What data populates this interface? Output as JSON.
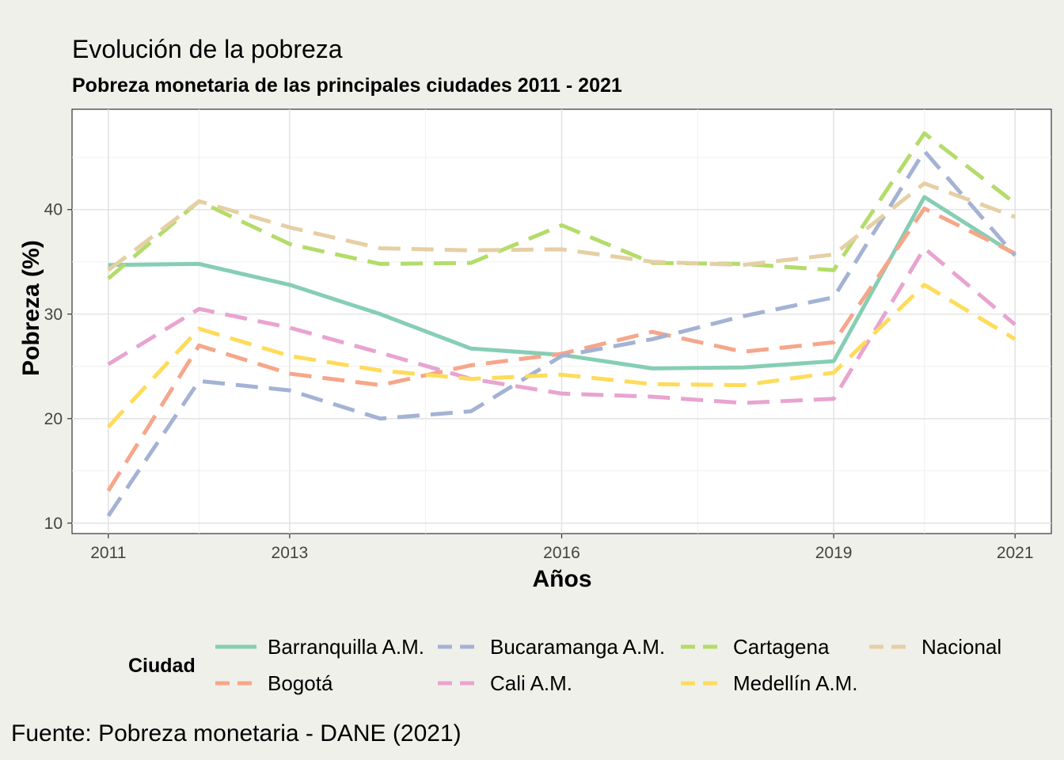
{
  "title": "Evolución de la pobreza",
  "subtitle": "Pobreza monetaria de las principales ciudades 2011 - 2021",
  "caption": "Fuente: Pobreza monetaria - DANE (2021)",
  "legend": {
    "title": "Ciudad"
  },
  "chart_data": {
    "type": "line",
    "xlabel": "Años",
    "ylabel": "Pobreza (%)",
    "xlim": [
      2010.6,
      2021.4
    ],
    "ylim": [
      9,
      49.6
    ],
    "x_ticks": [
      2011,
      2013,
      2016,
      2019,
      2021
    ],
    "y_ticks": [
      10,
      20,
      30,
      40
    ],
    "grid": true,
    "legend_position": "bottom",
    "x": [
      2011,
      2012,
      2013,
      2014,
      2015,
      2016,
      2017,
      2018,
      2019,
      2020,
      2021
    ],
    "series": [
      {
        "name": "Barranquilla A.M.",
        "color": "#86ceb3",
        "dash": "solid",
        "values": [
          34.7,
          34.8,
          32.8,
          30.0,
          26.7,
          26.1,
          24.8,
          24.9,
          25.5,
          41.2,
          35.7
        ]
      },
      {
        "name": "Bogotá",
        "color": "#f6a68a",
        "dash": "dashed",
        "values": [
          13.1,
          27.0,
          24.3,
          23.2,
          25.1,
          26.2,
          28.3,
          26.4,
          27.3,
          40.1,
          35.8
        ]
      },
      {
        "name": "Bucaramanga A.M.",
        "color": "#a4b2d4",
        "dash": "dashed",
        "values": [
          10.7,
          23.6,
          22.7,
          20.0,
          20.7,
          26.0,
          27.6,
          29.8,
          31.6,
          45.6,
          35.6
        ]
      },
      {
        "name": "Cali A.M.",
        "color": "#e8a4d0",
        "dash": "dashed",
        "values": [
          25.2,
          30.5,
          28.7,
          26.3,
          23.8,
          22.4,
          22.1,
          21.5,
          21.9,
          36.3,
          29.0
        ]
      },
      {
        "name": "Cartagena",
        "color": "#b3dc6a",
        "dash": "dashed",
        "values": [
          33.4,
          40.8,
          36.7,
          34.8,
          34.9,
          38.5,
          34.9,
          34.8,
          34.2,
          47.3,
          40.6
        ]
      },
      {
        "name": "Medellín A.M.",
        "color": "#ffdb5a",
        "dash": "dashed",
        "values": [
          19.2,
          28.6,
          26.0,
          24.6,
          23.8,
          24.2,
          23.3,
          23.2,
          24.4,
          32.8,
          27.6
        ]
      },
      {
        "name": "Nacional",
        "color": "#e5cfa4",
        "dash": "dashed",
        "values": [
          34.2,
          40.8,
          38.3,
          36.3,
          36.1,
          36.2,
          35.0,
          34.7,
          35.7,
          42.5,
          39.3
        ]
      }
    ]
  }
}
